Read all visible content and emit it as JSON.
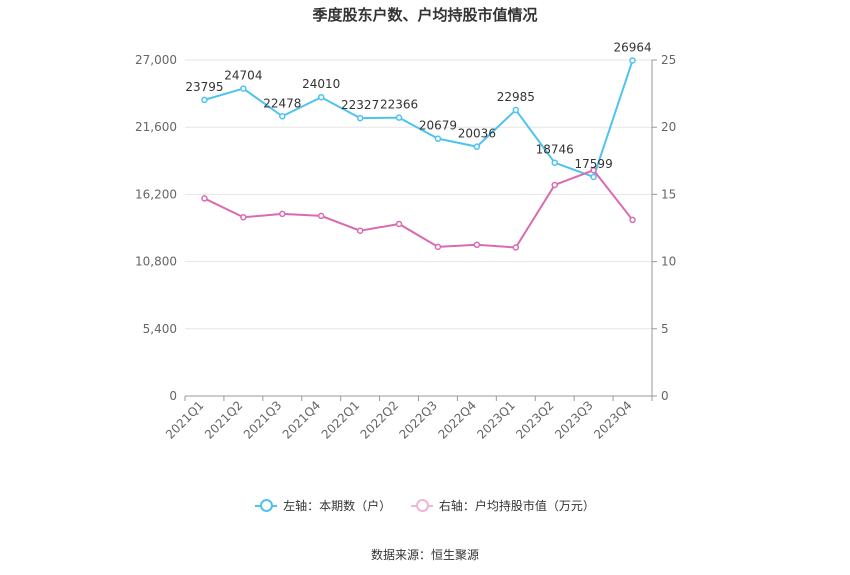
{
  "title": "季度股东户数、户均持股市值情况",
  "source_text": "数据来源：恒生聚源",
  "chart_data": {
    "type": "line",
    "categories": [
      "2021Q1",
      "2021Q2",
      "2021Q3",
      "2021Q4",
      "2022Q1",
      "2022Q2",
      "2022Q3",
      "2022Q4",
      "2023Q1",
      "2023Q2",
      "2023Q3",
      "2023Q4"
    ],
    "series": [
      {
        "name": "左轴：本期数（户）",
        "axis": "left",
        "color": "#4fc3f0",
        "values": [
          23795,
          24704,
          22478,
          24010,
          22327,
          22366,
          20679,
          20036,
          22985,
          18746,
          17599,
          26964
        ],
        "labels": [
          "23795",
          "24704",
          "22478",
          "24010",
          "22327",
          "22366",
          "20679",
          "20036",
          "22985",
          "18746",
          "17599",
          "26964"
        ]
      },
      {
        "name": "右轴：户均持股市值（万元）",
        "axis": "right",
        "color": "#d96bb0",
        "values": [
          14.7,
          13.3,
          13.55,
          13.4,
          12.3,
          12.8,
          11.1,
          11.25,
          11.05,
          15.7,
          16.8,
          13.1
        ]
      }
    ],
    "y_left": {
      "ticks": [
        "0",
        "5,400",
        "10,800",
        "16,200",
        "21,600",
        "27,000"
      ],
      "tick_values": [
        0,
        5400,
        10800,
        16200,
        21600,
        27000
      ],
      "range": [
        0,
        27000
      ]
    },
    "y_right": {
      "ticks": [
        "0",
        "5",
        "10",
        "15",
        "20",
        "25"
      ],
      "tick_values": [
        0,
        5,
        10,
        15,
        20,
        25
      ],
      "range": [
        0,
        25
      ]
    },
    "grid": true,
    "legend_position": "bottom"
  }
}
